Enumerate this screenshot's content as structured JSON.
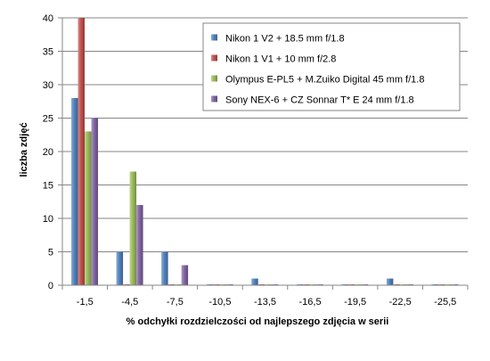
{
  "chart_data": {
    "type": "bar",
    "title": "",
    "xlabel": "% odchyłki  rozdzielczości  od najlepszego  zdjęcia  w serii",
    "ylabel": "liczba zdjęć",
    "ylim": [
      0,
      40
    ],
    "yticks": [
      0,
      5,
      10,
      15,
      20,
      25,
      30,
      35,
      40
    ],
    "grid": "horizontal",
    "legend_position": "top-right",
    "categories": [
      "-1,5",
      "-4,5",
      "-7,5",
      "-10,5",
      "-13,5",
      "-16,5",
      "-19,5",
      "-22,5",
      "-25,5"
    ],
    "series": [
      {
        "name": "Nikon 1 V2 + 18.5 mm  f/1.8",
        "color": "#4F81BD",
        "values": [
          28,
          5,
          5,
          0,
          1,
          0,
          0,
          1,
          0
        ]
      },
      {
        "name": "Nikon 1 V1 + 10 mm  f/2.8",
        "color": "#C0504D",
        "values": [
          40,
          0,
          0,
          0,
          0,
          0,
          0,
          0,
          0
        ]
      },
      {
        "name": "Olympus E-PL5 + M.Zuiko  Digital  45 mm  f/1.8",
        "color": "#9BBB59",
        "values": [
          23,
          17,
          0,
          0,
          0,
          0,
          0,
          0,
          0
        ]
      },
      {
        "name": "Sony NEX-6  + CZ Sonnar T* E 24 mm  f/1.8",
        "color": "#8064A2",
        "values": [
          25,
          12,
          3,
          0,
          0,
          0,
          0,
          0,
          0
        ]
      }
    ]
  }
}
